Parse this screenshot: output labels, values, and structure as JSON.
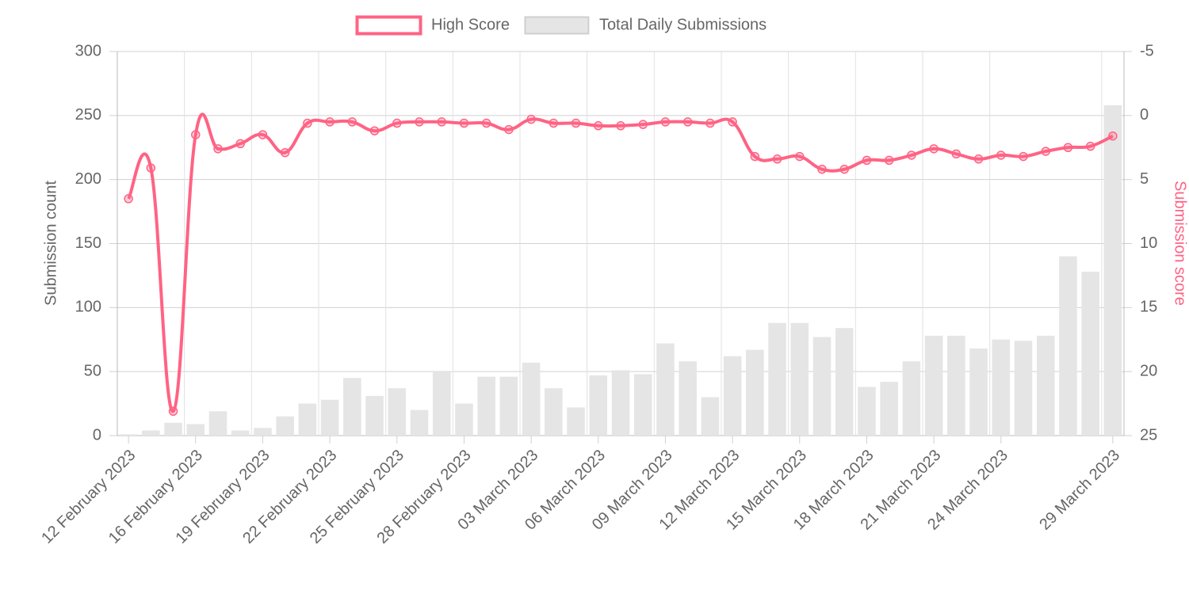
{
  "chart_data": {
    "type": "bar",
    "categories": [
      "12 February 2023",
      null,
      null,
      "16 February 2023",
      null,
      null,
      "19 February 2023",
      null,
      null,
      "22 February 2023",
      null,
      null,
      "25 February 2023",
      null,
      null,
      "28 February 2023",
      null,
      null,
      "03 March 2023",
      null,
      null,
      "06 March 2023",
      null,
      null,
      "09 March 2023",
      null,
      null,
      "12 March 2023",
      null,
      null,
      "15 March 2023",
      null,
      null,
      "18 March 2023",
      null,
      null,
      "21 March 2023",
      null,
      null,
      "24 March 2023",
      null,
      null,
      null,
      null,
      "29 March 2023"
    ],
    "series": [
      {
        "name": "High Score",
        "type": "line",
        "axis": "y2",
        "color": "#ff6384",
        "values": [
          6.5,
          4.1,
          23.1,
          1.5,
          2.6,
          2.2,
          1.5,
          2.9,
          0.6,
          0.5,
          0.5,
          1.2,
          0.6,
          0.5,
          0.5,
          0.6,
          0.6,
          1.1,
          0.3,
          0.6,
          0.6,
          0.8,
          0.8,
          0.7,
          0.5,
          0.5,
          0.6,
          0.5,
          3.2,
          3.4,
          3.2,
          4.2,
          4.2,
          3.5,
          3.5,
          3.1,
          2.6,
          3.0,
          3.4,
          3.1,
          3.2,
          2.8,
          2.5,
          2.4,
          1.6
        ]
      },
      {
        "name": "Total Daily Submissions",
        "type": "bar",
        "color": "#e5e5e5",
        "values": [
          1,
          4,
          10,
          9,
          19,
          4,
          6,
          15,
          25,
          28,
          45,
          31,
          37,
          20,
          50,
          25,
          46,
          46,
          57,
          37,
          22,
          47,
          51,
          48,
          72,
          58,
          30,
          62,
          67,
          88,
          88,
          77,
          84,
          38,
          42,
          58,
          78,
          78,
          68,
          75,
          74,
          78,
          140,
          128,
          258
        ]
      }
    ],
    "y_label": "Submission count",
    "y2_label": "Submission score",
    "ylim": [
      0,
      300
    ],
    "yticks": [
      0,
      50,
      100,
      150,
      200,
      250,
      300
    ],
    "y2lim": [
      25,
      -5
    ],
    "y2ticks": [
      -5,
      0,
      5,
      10,
      15,
      20,
      25
    ],
    "grid": true,
    "legend": "top"
  }
}
